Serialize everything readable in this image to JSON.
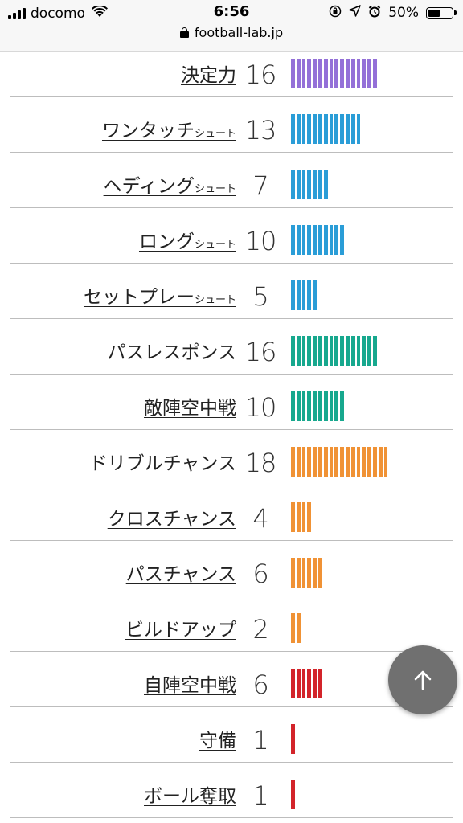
{
  "status_bar": {
    "carrier": "docomo",
    "time": "6:56",
    "battery": "50%",
    "battery_level": 0.5,
    "url": "football-lab.jp"
  },
  "colors": {
    "purple": "#9470d8",
    "blue": "#2a9dd7",
    "teal": "#17a88e",
    "orange": "#f09235",
    "red": "#d3242a",
    "fab": "#707070"
  },
  "stats": [
    {
      "label": "決定力",
      "suffix": "",
      "value": "16",
      "count": 16,
      "color": "purple"
    },
    {
      "label": "ワンタッチ",
      "suffix": "シュート",
      "value": "13",
      "count": 13,
      "color": "blue"
    },
    {
      "label": "ヘディング",
      "suffix": "シュート",
      "value": "7",
      "count": 7,
      "color": "blue"
    },
    {
      "label": "ロング",
      "suffix": "シュート",
      "value": "10",
      "count": 10,
      "color": "blue"
    },
    {
      "label": "セットプレー",
      "suffix": "シュート",
      "value": "5",
      "count": 5,
      "color": "blue"
    },
    {
      "label": "パスレスポンス",
      "suffix": "",
      "value": "16",
      "count": 16,
      "color": "teal"
    },
    {
      "label": "敵陣空中戦",
      "suffix": "",
      "value": "10",
      "count": 10,
      "color": "teal"
    },
    {
      "label": "ドリブルチャンス",
      "suffix": "",
      "value": "18",
      "count": 18,
      "color": "orange"
    },
    {
      "label": "クロスチャンス",
      "suffix": "",
      "value": "4",
      "count": 4,
      "color": "orange"
    },
    {
      "label": "パスチャンス",
      "suffix": "",
      "value": "6",
      "count": 6,
      "color": "orange"
    },
    {
      "label": "ビルドアップ",
      "suffix": "",
      "value": "2",
      "count": 2,
      "color": "orange"
    },
    {
      "label": "自陣空中戦",
      "suffix": "",
      "value": "6",
      "count": 6,
      "color": "red"
    },
    {
      "label": "守備",
      "suffix": "",
      "value": "1",
      "count": 1,
      "color": "red"
    },
    {
      "label": "ボール奪取",
      "suffix": "",
      "value": "1",
      "count": 1,
      "color": "red"
    }
  ],
  "icons": {
    "fab": "arrow-up-icon"
  }
}
